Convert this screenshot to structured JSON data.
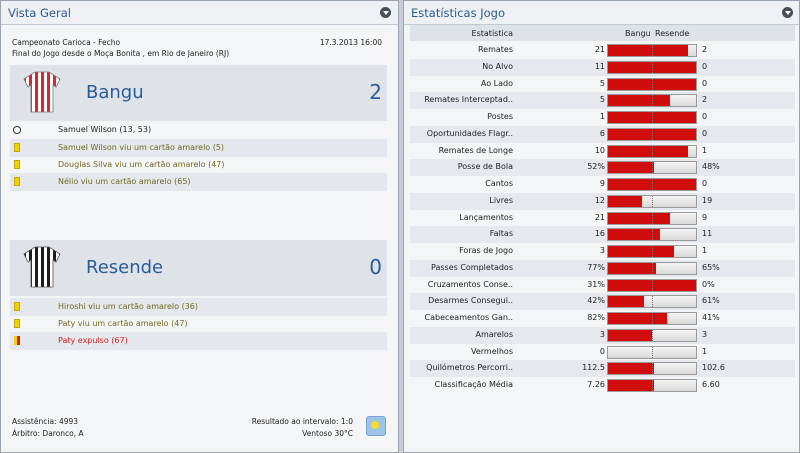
{
  "overview": {
    "title": "Vista Geral",
    "competition": "Campeonato Carioca - Fecho",
    "date": "17.3.2013 16:00",
    "venue_line": "Final do Jogo desde o Moça Bonita , em Rio de Janeiro (RJ)",
    "home": {
      "name": "Bangu",
      "score": "2",
      "events": [
        {
          "type": "goal",
          "text": "Samuel Wilson (13, 53)"
        },
        {
          "type": "yellow",
          "text": "Samuel Wilson viu um cartão amarelo (5)"
        },
        {
          "type": "yellow",
          "text": "Douglas Silva viu um cartão amarelo (47)"
        },
        {
          "type": "yellow",
          "text": "Nélio viu um cartão amarelo (65)"
        }
      ]
    },
    "away": {
      "name": "Resende",
      "score": "0",
      "events": [
        {
          "type": "yellow",
          "text": "Hiroshi viu um cartão amarelo (36)"
        },
        {
          "type": "yellow",
          "text": "Paty viu um cartão amarelo (47)"
        },
        {
          "type": "red",
          "text": "Paty expulso (67)"
        }
      ]
    },
    "attendance": "Assistência: 4993",
    "referee": "Árbitro: Daronco, A",
    "halftime": "Resultado ao intervalo: 1:0",
    "weather": "Ventoso 30°C",
    "weather_icon": "sunny-weather-icon"
  },
  "stats": {
    "title": "Estatísticas Jogo",
    "col_stat": "Estatística",
    "col_home": "Bangu",
    "col_away": "Resende",
    "home_color": "#d10c0c",
    "rows": [
      {
        "label": "Remates",
        "home": "21",
        "away": "2",
        "share": 0.91
      },
      {
        "label": "No Alvo",
        "home": "11",
        "away": "0",
        "share": 1.0
      },
      {
        "label": "Ao Lado",
        "home": "5",
        "away": "0",
        "share": 1.0
      },
      {
        "label": "Remates Interceptad..",
        "home": "5",
        "away": "2",
        "share": 0.71
      },
      {
        "label": "Postes",
        "home": "1",
        "away": "0",
        "share": 1.0
      },
      {
        "label": "Oportunidades Flagr..",
        "home": "6",
        "away": "0",
        "share": 1.0
      },
      {
        "label": "Remates de Longe",
        "home": "10",
        "away": "1",
        "share": 0.91
      },
      {
        "label": "Posse de Bola",
        "home": "52%",
        "away": "48%",
        "share": 0.52
      },
      {
        "label": "Cantos",
        "home": "9",
        "away": "0",
        "share": 1.0
      },
      {
        "label": "Livres",
        "home": "12",
        "away": "19",
        "share": 0.39
      },
      {
        "label": "Lançamentos",
        "home": "21",
        "away": "9",
        "share": 0.7
      },
      {
        "label": "Faltas",
        "home": "16",
        "away": "11",
        "share": 0.59
      },
      {
        "label": "Foras de Jogo",
        "home": "3",
        "away": "1",
        "share": 0.75
      },
      {
        "label": "Passes Completados",
        "home": "77%",
        "away": "65%",
        "share": 0.54
      },
      {
        "label": "Cruzamentos Conse..",
        "home": "31%",
        "away": "0%",
        "share": 1.0
      },
      {
        "label": "Desarmes Consegui..",
        "home": "42%",
        "away": "61%",
        "share": 0.41
      },
      {
        "label": "Cabeceamentos Gan..",
        "home": "82%",
        "away": "41%",
        "share": 0.67
      },
      {
        "label": "Amarelos",
        "home": "3",
        "away": "3",
        "share": 0.5
      },
      {
        "label": "Vermelhos",
        "home": "0",
        "away": "1",
        "share": 0.0
      },
      {
        "label": "Quilómetros Percorri..",
        "home": "112.5",
        "away": "102.6",
        "share": 0.52
      },
      {
        "label": "Classificação Média",
        "home": "7.26",
        "away": "6.60",
        "share": 0.52
      }
    ]
  }
}
